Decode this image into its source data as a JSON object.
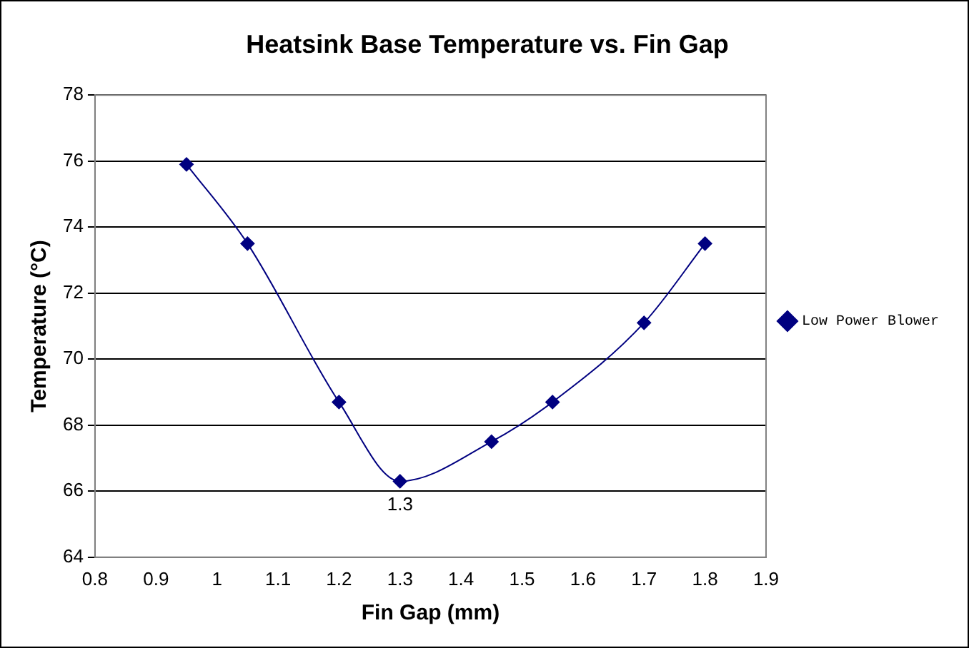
{
  "chart_data": {
    "type": "line",
    "title": "Heatsink Base Temperature vs. Fin Gap",
    "xlabel": "Fin Gap (mm)",
    "ylabel": "Temperature (°C)",
    "x": [
      0.95,
      1.05,
      1.2,
      1.3,
      1.45,
      1.55,
      1.7,
      1.8
    ],
    "series": [
      {
        "name": "Low Power Blower",
        "color": "#000080",
        "values": [
          75.9,
          73.5,
          68.7,
          66.3,
          67.5,
          68.7,
          71.1,
          73.5
        ]
      }
    ],
    "xlim": [
      0.8,
      1.9
    ],
    "xticks": [
      0.8,
      0.9,
      1,
      1.1,
      1.2,
      1.3,
      1.4,
      1.5,
      1.6,
      1.7,
      1.8,
      1.9
    ],
    "ylim": [
      64,
      78
    ],
    "yticks": [
      64,
      66,
      68,
      70,
      72,
      74,
      76,
      78
    ],
    "annotations": [
      {
        "text": "1.3",
        "x": 1.3,
        "y": 66.3
      }
    ],
    "grid": "y",
    "legend": "right",
    "marker": "diamond",
    "line_style": "solid"
  }
}
